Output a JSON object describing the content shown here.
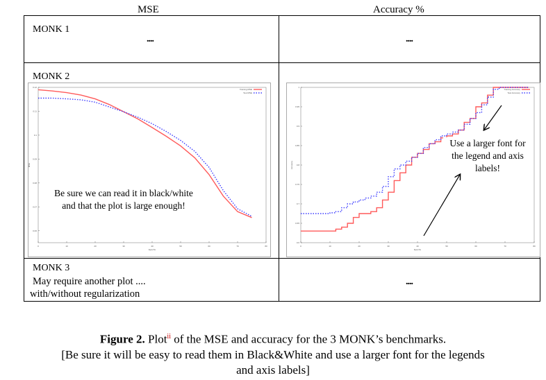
{
  "header": {
    "col1": "MSE",
    "col2": "Accuracy  %"
  },
  "rows": [
    {
      "label": "MONK 1",
      "mse_placeholder": "....",
      "acc_placeholder": "...."
    },
    {
      "label": "MONK 2"
    },
    {
      "label": "MONK 3",
      "note_line1": "May require another plot ....",
      "note_line2": "with/without regularization",
      "acc_placeholder": "...."
    }
  ],
  "annotations": {
    "mse_note_line1": "Be sure we can read it in black/white",
    "mse_note_line2": "and that the plot  is  large enough!",
    "acc_note_line1": "Use a larger font for",
    "acc_note_line2": "the legend and axis",
    "acc_note_line3": "labels!"
  },
  "caption": {
    "bold": "Figure 2.",
    "word": "Plot",
    "sup": "ii",
    "rest": " of the MSE and accuracy for the 3 MONK’s benchmarks.",
    "line2": "[Be sure it will be easy to read them in Black&White and use a larger font for the legends",
    "line3": "and axis labels]"
  },
  "colors": {
    "train": "#ff5a5a",
    "test": "#3a3aff",
    "arrow": "#000000"
  },
  "chart_data": [
    {
      "type": "line",
      "x": [
        0,
        5,
        10,
        15,
        20,
        25,
        30,
        35,
        40,
        45,
        50,
        55,
        60,
        65,
        70,
        75
      ],
      "series": [
        {
          "name": "Training MSE",
          "values": [
            0.119,
            0.1185,
            0.1178,
            0.1168,
            0.1152,
            0.1128,
            0.1098,
            0.1068,
            0.1032,
            0.0995,
            0.0955,
            0.0905,
            0.0835,
            0.0745,
            0.068,
            0.0655
          ]
        },
        {
          "name": "Test MSE",
          "values": [
            0.1155,
            0.1155,
            0.1152,
            0.1148,
            0.1138,
            0.1118,
            0.1098,
            0.1075,
            0.1048,
            0.1015,
            0.0978,
            0.0932,
            0.0865,
            0.0768,
            0.0692,
            0.066
          ]
        }
      ],
      "xlim": [
        0,
        80
      ],
      "ylim": [
        0.055,
        0.12
      ],
      "xticks": [
        "0",
        "10",
        "20",
        "30",
        "40",
        "50",
        "60",
        "70",
        "80"
      ],
      "yticks": [
        "0.06",
        "0.07",
        "0.08",
        "0.09",
        "0.1",
        "0.11",
        "0.12"
      ],
      "xlabel": "Epochs",
      "ylabel": "MSE",
      "legend": "top-right"
    },
    {
      "type": "line",
      "x": [
        0,
        2,
        4,
        6,
        8,
        10,
        12,
        14,
        16,
        18,
        20,
        22,
        24,
        26,
        28,
        30,
        32,
        34,
        36,
        38,
        40,
        42,
        44,
        46,
        48,
        50,
        52,
        54,
        56,
        58,
        60,
        62,
        64,
        66,
        68,
        70,
        72,
        74,
        76,
        78
      ],
      "series": [
        {
          "name": "Training Accuracy",
          "values": [
            0.63,
            0.63,
            0.63,
            0.63,
            0.63,
            0.63,
            0.635,
            0.64,
            0.65,
            0.665,
            0.675,
            0.675,
            0.68,
            0.69,
            0.71,
            0.73,
            0.76,
            0.78,
            0.8,
            0.82,
            0.83,
            0.84,
            0.855,
            0.86,
            0.87,
            0.875,
            0.88,
            0.89,
            0.91,
            0.92,
            0.95,
            0.96,
            0.98,
            1.0,
            1.0,
            1.0,
            1.0,
            1.0,
            1.0,
            1.0
          ]
        },
        {
          "name": "Test Accuracy",
          "values": [
            0.675,
            0.675,
            0.675,
            0.675,
            0.675,
            0.677,
            0.68,
            0.69,
            0.7,
            0.705,
            0.71,
            0.715,
            0.72,
            0.73,
            0.745,
            0.77,
            0.79,
            0.8,
            0.81,
            0.82,
            0.83,
            0.845,
            0.855,
            0.865,
            0.875,
            0.88,
            0.885,
            0.89,
            0.905,
            0.92,
            0.935,
            0.955,
            0.975,
            0.995,
            1.0,
            1.0,
            1.0,
            1.0,
            1.0,
            1.0
          ]
        }
      ],
      "xlim": [
        0,
        80
      ],
      "ylim": [
        0.6,
        1.0
      ],
      "xticks": [
        "0",
        "10",
        "20",
        "30",
        "40",
        "50",
        "60",
        "70",
        "80"
      ],
      "yticks": [
        "0.6",
        "0.65",
        "0.7",
        "0.75",
        "0.8",
        "0.85",
        "0.9",
        "0.95",
        "1"
      ],
      "xlabel": "Epochs",
      "ylabel": "Accuracy",
      "legend": "top-right"
    }
  ]
}
